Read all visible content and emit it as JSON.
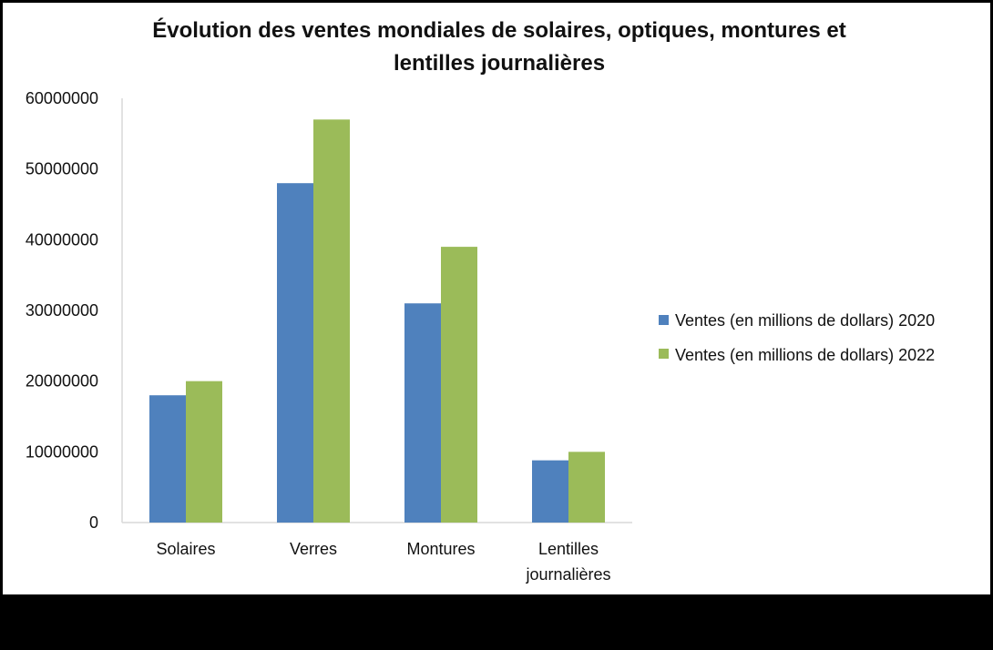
{
  "chart_data": {
    "type": "bar",
    "title": "Évolution des ventes mondiales de solaires, optiques, montures et lentilles journalières",
    "title_lines": [
      "Évolution des ventes mondiales de solaires, optiques, montures et",
      "lentilles journalières"
    ],
    "categories": [
      "Solaires",
      "Verres",
      "Montures",
      "Lentilles journalières"
    ],
    "category_lines": [
      [
        "Solaires"
      ],
      [
        "Verres"
      ],
      [
        "Montures"
      ],
      [
        "Lentilles",
        "journalières"
      ]
    ],
    "series": [
      {
        "name": "Ventes (en millions de dollars) 2020",
        "values": [
          18000000,
          48000000,
          31000000,
          8800000
        ],
        "color": "#4f81bd"
      },
      {
        "name": "Ventes (en millions de dollars) 2022",
        "values": [
          20000000,
          57000000,
          39000000,
          10000000
        ],
        "color": "#9bbb59"
      }
    ],
    "ylim": [
      0,
      60000000
    ],
    "yticks": [
      "0",
      "10000000",
      "20000000",
      "30000000",
      "40000000",
      "50000000",
      "60000000"
    ],
    "xlabel": "",
    "ylabel": "",
    "grid": false,
    "legend_position": "right"
  }
}
